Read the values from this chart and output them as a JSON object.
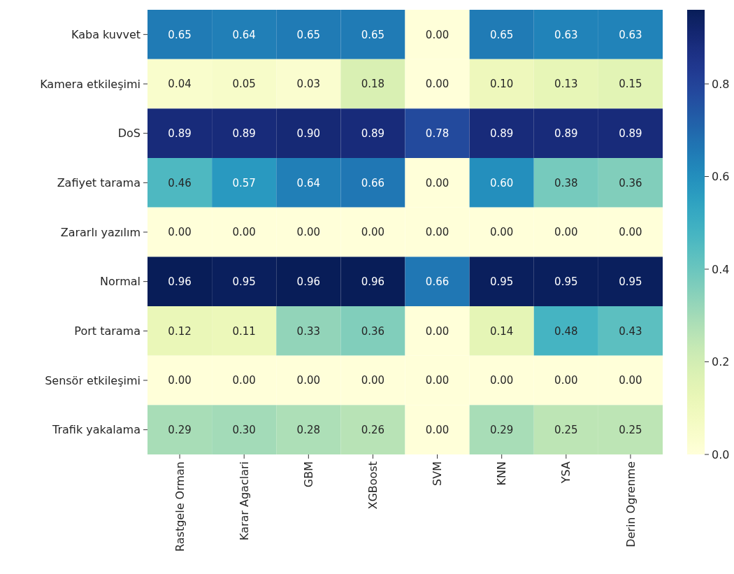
{
  "chart_data": {
    "type": "heatmap",
    "categories": [
      "Rastgele Orman",
      "Karar Agaclari",
      "GBM",
      "XGBoost",
      "SVM",
      "KNN",
      "YSA",
      "Derin Ogrenme"
    ],
    "y_categories": [
      "Kaba kuvvet",
      "Kamera etkileşimi",
      "DoS",
      "Zafiyet tarama",
      "Zararlı yazılım",
      "Normal",
      "Port tarama",
      "Sensör etkileşimi",
      "Trafik yakalama"
    ],
    "cells": [
      [
        0.65,
        0.64,
        0.65,
        0.65,
        0.0,
        0.65,
        0.63,
        0.63
      ],
      [
        0.04,
        0.05,
        0.03,
        0.18,
        0.0,
        0.1,
        0.13,
        0.15
      ],
      [
        0.89,
        0.89,
        0.9,
        0.89,
        0.78,
        0.89,
        0.89,
        0.89
      ],
      [
        0.46,
        0.57,
        0.64,
        0.66,
        0.0,
        0.6,
        0.38,
        0.36
      ],
      [
        0.0,
        0.0,
        0.0,
        0.0,
        0.0,
        0.0,
        0.0,
        0.0
      ],
      [
        0.96,
        0.95,
        0.96,
        0.96,
        0.66,
        0.95,
        0.95,
        0.95
      ],
      [
        0.12,
        0.11,
        0.33,
        0.36,
        0.0,
        0.14,
        0.48,
        0.43
      ],
      [
        0.0,
        0.0,
        0.0,
        0.0,
        0.0,
        0.0,
        0.0,
        0.0
      ],
      [
        0.29,
        0.3,
        0.28,
        0.26,
        0.0,
        0.29,
        0.25,
        0.25
      ]
    ],
    "cell_labels": [
      [
        "0.65",
        "0.64",
        "0.65",
        "0.65",
        "0.00",
        "0.65",
        "0.63",
        "0.63"
      ],
      [
        "0.04",
        "0.05",
        "0.03",
        "0.18",
        "0.00",
        "0.10",
        "0.13",
        "0.15"
      ],
      [
        "0.89",
        "0.89",
        "0.90",
        "0.89",
        "0.78",
        "0.89",
        "0.89",
        "0.89"
      ],
      [
        "0.46",
        "0.57",
        "0.64",
        "0.66",
        "0.00",
        "0.60",
        "0.38",
        "0.36"
      ],
      [
        "0.00",
        "0.00",
        "0.00",
        "0.00",
        "0.00",
        "0.00",
        "0.00",
        "0.00"
      ],
      [
        "0.96",
        "0.95",
        "0.96",
        "0.96",
        "0.66",
        "0.95",
        "0.95",
        "0.95"
      ],
      [
        "0.12",
        "0.11",
        "0.33",
        "0.36",
        "0.00",
        "0.14",
        "0.48",
        "0.43"
      ],
      [
        "0.00",
        "0.00",
        "0.00",
        "0.00",
        "0.00",
        "0.00",
        "0.00",
        "0.00"
      ],
      [
        "0.29",
        "0.30",
        "0.28",
        "0.26",
        "0.00",
        "0.29",
        "0.25",
        "0.25"
      ]
    ],
    "clim": [
      0,
      0.96
    ],
    "cticks": [
      {
        "value": 0,
        "label": "0.0"
      },
      {
        "value": 0.2,
        "label": "0.2"
      },
      {
        "value": 0.4,
        "label": "0.4"
      },
      {
        "value": 0.6,
        "label": "0.6"
      },
      {
        "value": 0.8,
        "label": "0.8"
      }
    ]
  }
}
